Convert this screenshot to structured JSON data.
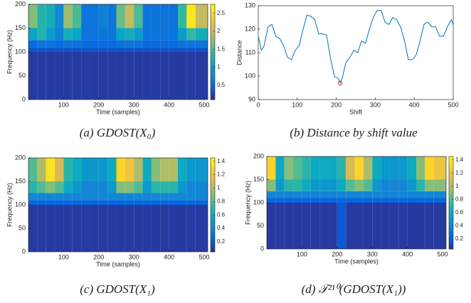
{
  "chart_data": [
    {
      "type": "heatmap",
      "caption": "(a) GDOST(X₀)",
      "xlabel": "Time (samples)",
      "ylabel": "Frequency (Hz)",
      "colormap": "parula",
      "x_edges": [
        0,
        25,
        50,
        75,
        100,
        125,
        150,
        175,
        200,
        225,
        250,
        275,
        300,
        325,
        350,
        375,
        400,
        425,
        450,
        475,
        510
      ],
      "y_edges": [
        0,
        100,
        110,
        125,
        150,
        200
      ],
      "z": [
        [
          0.2,
          0.2,
          0.2,
          0.2,
          0.2,
          0.2,
          0.2,
          0.2,
          0.2,
          0.2,
          0.2,
          0.2,
          0.2,
          0.2,
          0.2,
          0.2,
          0.2,
          0.2,
          0.2,
          0.2
        ],
        [
          0.35,
          0.35,
          0.35,
          0.35,
          0.35,
          0.35,
          0.35,
          0.35,
          0.35,
          0.35,
          0.35,
          0.35,
          0.35,
          0.35,
          0.35,
          0.35,
          0.35,
          0.35,
          0.35,
          0.35
        ],
        [
          0.5,
          0.6,
          0.6,
          0.5,
          0.6,
          0.6,
          0.5,
          0.5,
          0.5,
          0.5,
          0.6,
          0.6,
          0.6,
          0.5,
          0.5,
          0.5,
          0.5,
          0.6,
          0.6,
          0.6
        ],
        [
          1.1,
          1.3,
          1.0,
          0.7,
          1.2,
          1.1,
          0.6,
          0.6,
          0.6,
          0.6,
          1.1,
          1.2,
          1.0,
          0.6,
          0.6,
          0.6,
          0.6,
          1.0,
          1.4,
          1.2
        ],
        [
          1.7,
          1.3,
          1.2,
          0.8,
          1.8,
          1.5,
          0.6,
          0.6,
          0.7,
          0.6,
          1.6,
          2.0,
          1.5,
          0.6,
          0.6,
          0.6,
          0.6,
          1.4,
          2.6,
          2.0
        ]
      ],
      "xlim": [
        0,
        510
      ],
      "ylim": [
        0,
        200
      ],
      "xticks": [
        100,
        200,
        300,
        400,
        500
      ],
      "yticks": [
        0,
        50,
        100,
        150,
        200
      ],
      "zlim": [
        0.1,
        2.75
      ],
      "zticks": [
        0.5,
        1,
        1.5,
        2,
        2.5
      ]
    },
    {
      "type": "line",
      "caption": "(b) Distance by shift value",
      "xlabel": "Shift",
      "ylabel": "Distance",
      "color": "#0072bd",
      "x": [
        0,
        8,
        15,
        25,
        35,
        45,
        55,
        65,
        75,
        85,
        95,
        105,
        115,
        125,
        135,
        145,
        155,
        165,
        175,
        185,
        195,
        205,
        210,
        215,
        225,
        235,
        245,
        255,
        265,
        275,
        285,
        295,
        305,
        315,
        325,
        335,
        345,
        355,
        365,
        375,
        385,
        395,
        405,
        415,
        425,
        435,
        445,
        455,
        465,
        475,
        485,
        495,
        500
      ],
      "values": [
        117,
        111,
        113,
        121,
        122,
        117,
        116,
        113,
        108,
        107,
        111,
        113,
        120,
        126,
        125.5,
        124,
        118,
        118,
        117.5,
        108,
        100,
        99,
        97,
        99,
        106,
        108,
        111,
        110,
        115,
        114,
        120,
        125,
        128,
        128,
        123,
        122,
        125,
        124,
        121,
        115,
        107,
        107,
        109,
        115,
        122,
        123,
        121,
        121,
        117,
        117,
        121,
        124,
        122
      ],
      "marker": {
        "x": 210,
        "y": 97,
        "color": "#e4211c"
      },
      "xlim": [
        0,
        500
      ],
      "ylim": [
        90,
        130
      ],
      "xticks": [
        0,
        100,
        200,
        300,
        400,
        500
      ],
      "yticks": [
        90,
        100,
        110,
        120,
        130
      ]
    },
    {
      "type": "heatmap",
      "caption": "(c) GDOST(X₁)",
      "xlabel": "Time (samples)",
      "ylabel": "Frequency (Hz)",
      "colormap": "parula",
      "x_edges": [
        0,
        25,
        50,
        75,
        100,
        125,
        150,
        175,
        200,
        225,
        250,
        275,
        300,
        325,
        350,
        375,
        400,
        425,
        450,
        475,
        510
      ],
      "y_edges": [
        0,
        100,
        110,
        125,
        150,
        200
      ],
      "z": [
        [
          0.1,
          0.1,
          0.1,
          0.1,
          0.1,
          0.1,
          0.1,
          0.1,
          0.1,
          0.1,
          0.1,
          0.1,
          0.1,
          0.1,
          0.1,
          0.1,
          0.1,
          0.1,
          0.1,
          0.1
        ],
        [
          0.25,
          0.25,
          0.25,
          0.25,
          0.25,
          0.25,
          0.25,
          0.25,
          0.25,
          0.25,
          0.25,
          0.25,
          0.25,
          0.25,
          0.25,
          0.25,
          0.25,
          0.25,
          0.25,
          0.25
        ],
        [
          0.4,
          0.4,
          0.4,
          0.4,
          0.4,
          0.4,
          0.4,
          0.4,
          0.4,
          0.4,
          0.4,
          0.4,
          0.4,
          0.4,
          0.4,
          0.4,
          0.4,
          0.4,
          0.4,
          0.4
        ],
        [
          0.7,
          0.8,
          0.9,
          0.8,
          0.6,
          0.5,
          0.4,
          0.4,
          0.4,
          0.5,
          0.9,
          0.9,
          0.8,
          0.5,
          0.7,
          0.7,
          0.7,
          0.5,
          0.4,
          0.4
        ],
        [
          0.8,
          1.0,
          1.35,
          1.1,
          0.7,
          0.6,
          0.5,
          0.5,
          0.5,
          0.6,
          1.3,
          1.2,
          1.0,
          0.6,
          0.9,
          1.0,
          1.0,
          0.6,
          0.5,
          0.5
        ]
      ],
      "xlim": [
        0,
        510
      ],
      "ylim": [
        0,
        200
      ],
      "xticks": [
        100,
        200,
        300,
        400,
        500
      ],
      "yticks": [
        0,
        50,
        100,
        150,
        200
      ],
      "zlim": [
        0.05,
        1.45
      ],
      "zticks": [
        0.2,
        0.4,
        0.6,
        0.8,
        1,
        1.2,
        1.4
      ]
    },
    {
      "type": "heatmap",
      "caption": "(d) 𝒯²¹⁰(GDOST(X₁))",
      "xlabel": "Time (samples)",
      "ylabel": "Frequency (Hz)",
      "colormap": "parula",
      "x_edges": [
        0,
        25,
        50,
        75,
        100,
        125,
        150,
        175,
        200,
        225,
        250,
        275,
        300,
        325,
        350,
        375,
        400,
        425,
        450,
        475,
        510
      ],
      "y_edges": [
        0,
        100,
        110,
        125,
        150,
        200
      ],
      "z": [
        [
          0.1,
          0.1,
          0.1,
          0.1,
          0.1,
          0.1,
          0.1,
          0.1,
          0.2,
          0.1,
          0.1,
          0.1,
          0.1,
          0.1,
          0.1,
          0.1,
          0.1,
          0.1,
          0.1,
          0.1
        ],
        [
          0.25,
          0.25,
          0.25,
          0.25,
          0.25,
          0.25,
          0.25,
          0.25,
          0.25,
          0.25,
          0.25,
          0.25,
          0.25,
          0.25,
          0.25,
          0.25,
          0.25,
          0.25,
          0.25,
          0.25
        ],
        [
          0.4,
          0.4,
          0.4,
          0.4,
          0.4,
          0.4,
          0.4,
          0.4,
          0.4,
          0.4,
          0.4,
          0.4,
          0.4,
          0.4,
          0.4,
          0.4,
          0.4,
          0.4,
          0.4,
          0.4
        ],
        [
          0.9,
          0.5,
          0.7,
          0.7,
          0.6,
          0.5,
          0.5,
          0.5,
          0.6,
          0.8,
          0.9,
          0.8,
          0.5,
          0.4,
          0.4,
          0.4,
          0.5,
          0.7,
          0.9,
          0.9
        ],
        [
          1.3,
          0.6,
          0.9,
          0.8,
          0.7,
          0.6,
          0.6,
          0.6,
          0.7,
          1.1,
          1.3,
          1.0,
          0.6,
          0.5,
          0.5,
          0.5,
          0.6,
          0.9,
          1.3,
          1.2
        ]
      ],
      "xlim": [
        0,
        510
      ],
      "ylim": [
        0,
        200
      ],
      "xticks": [
        100,
        200,
        300,
        400,
        500
      ],
      "yticks": [
        0,
        50,
        100,
        150,
        200
      ],
      "zlim": [
        0.05,
        1.45
      ],
      "zticks": [
        0.2,
        0.4,
        0.6,
        0.8,
        1,
        1.2,
        1.4
      ]
    }
  ]
}
